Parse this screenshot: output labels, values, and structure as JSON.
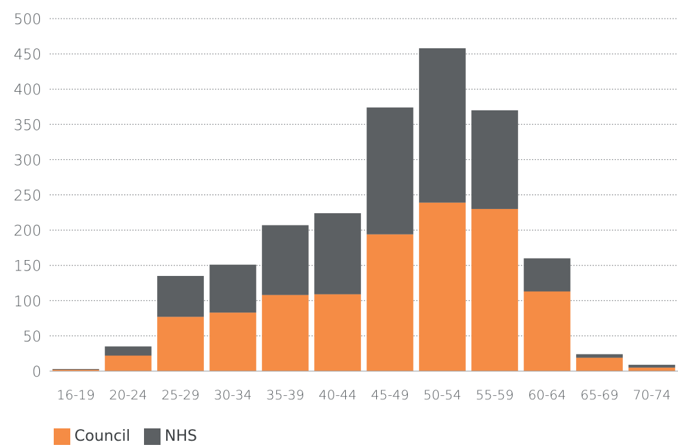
{
  "chart_data": {
    "type": "bar",
    "stacked": true,
    "categories": [
      "16-19",
      "20-24",
      "25-29",
      "30-34",
      "35-39",
      "40-44",
      "45-49",
      "50-54",
      "55-59",
      "60-64",
      "65-69",
      "70-74"
    ],
    "series": [
      {
        "name": "Council",
        "color": "#f58c45",
        "values": [
          2,
          22,
          77,
          83,
          108,
          109,
          194,
          239,
          230,
          113,
          19,
          5
        ]
      },
      {
        "name": "NHS",
        "color": "#5c6063",
        "values": [
          1,
          13,
          58,
          68,
          99,
          115,
          180,
          219,
          140,
          47,
          5,
          4
        ]
      }
    ],
    "ylim": [
      0,
      500
    ],
    "yticks": [
      "0",
      "50",
      "100",
      "150",
      "200",
      "250",
      "300",
      "350",
      "400",
      "450",
      "500"
    ],
    "grid": true,
    "legend_position": "bottom-left"
  }
}
